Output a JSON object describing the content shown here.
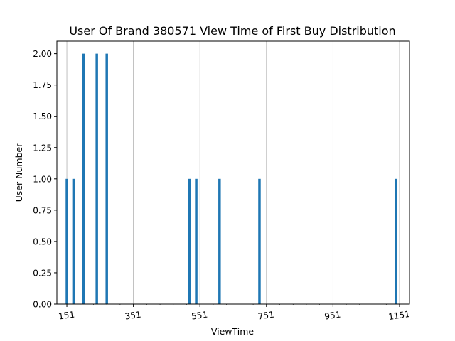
{
  "chart_data": {
    "type": "bar",
    "title": "User Of Brand 380571 View Time of First Buy Distribution",
    "xlabel": "ViewTime",
    "ylabel": "User Number",
    "xlim": [
      121,
      1181
    ],
    "ylim": [
      0,
      2.1
    ],
    "x_ticks": [
      151,
      351,
      551,
      751,
      951,
      1151
    ],
    "x_tick_labels": [
      "151",
      "351",
      "551",
      "751",
      "951",
      "1151"
    ],
    "y_ticks": [
      0,
      0.25,
      0.5,
      0.75,
      1.0,
      1.25,
      1.5,
      1.75,
      2.0
    ],
    "y_tick_labels": [
      "0.00",
      "0.25",
      "0.50",
      "0.75",
      "1.00",
      "1.25",
      "1.50",
      "1.75",
      "2.00"
    ],
    "grid": "x-major",
    "bar_color": "#1f77b4",
    "series": [
      {
        "x": [
          151,
          171,
          201,
          241,
          271,
          520,
          540,
          610,
          730,
          1140
        ],
        "values": [
          1,
          1,
          2,
          2,
          2,
          1,
          1,
          1,
          1,
          1
        ]
      }
    ]
  }
}
